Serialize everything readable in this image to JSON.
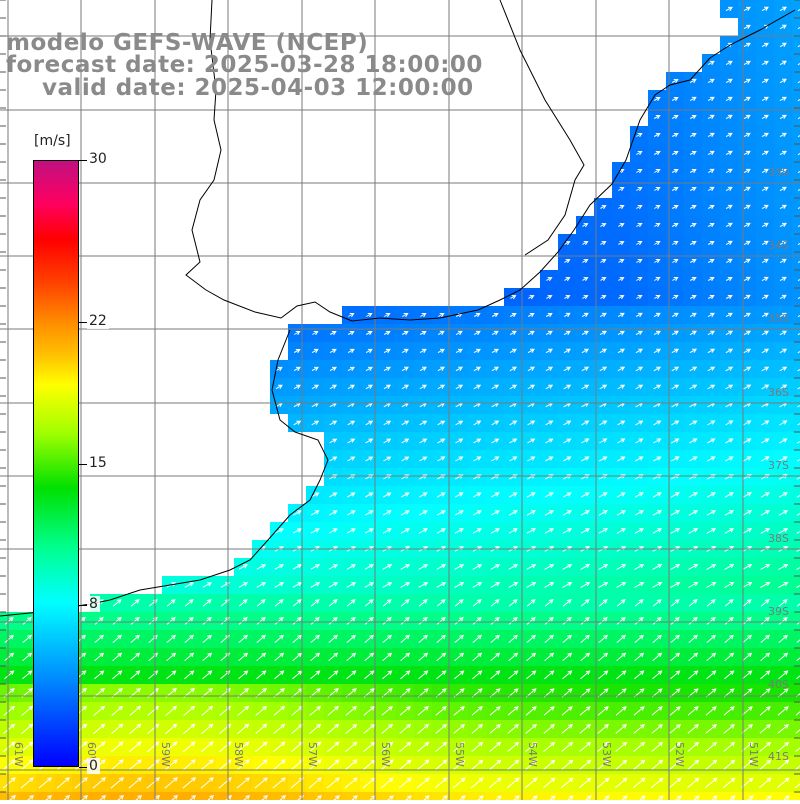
{
  "title": {
    "line1": "modelo GEFS-WAVE (NCEP)",
    "line2": "forecast date: 2025-03-28 18:00:00",
    "line3": "valid date: 2025-04-03 12:00:00"
  },
  "colorbar": {
    "unit": "[m/s]",
    "min": 0,
    "max": 30,
    "ticks": [
      "30",
      "22",
      "15",
      "8",
      "0"
    ],
    "tick_values": [
      30,
      22,
      15,
      8,
      0
    ]
  },
  "lat_labels": [
    "33S",
    "34S",
    "35S",
    "36S",
    "37S",
    "38S",
    "39S",
    "40S",
    "41S"
  ],
  "lon_labels": [
    "61W",
    "60W",
    "59W",
    "58W",
    "57W",
    "56W",
    "55W",
    "54W",
    "53W",
    "52W",
    "51W"
  ],
  "colors": {
    "land": "#ffffff",
    "grid": "#7a7a7a",
    "coast": "#000000",
    "arrow": "#ffffff",
    "title": "#8a8a8a"
  }
}
